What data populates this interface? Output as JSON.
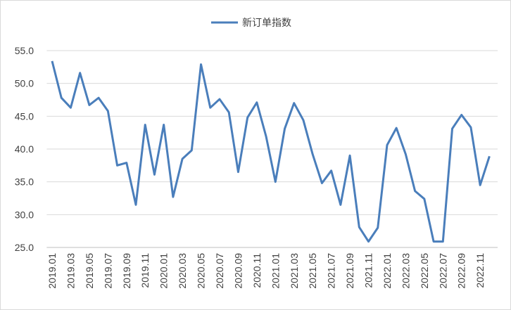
{
  "chart_data": {
    "type": "line",
    "categories": [
      "2019.01",
      null,
      "2019.03",
      null,
      "2019.05",
      null,
      "2019.07",
      null,
      "2019.09",
      null,
      "2019.11",
      null,
      "2020.01",
      null,
      "2020.03",
      null,
      "2020.05",
      null,
      "2020.07",
      null,
      "2020.09",
      null,
      "2020.11",
      null,
      "2021.01",
      null,
      "2021.03",
      null,
      "2021.05",
      null,
      "2021.07",
      null,
      "2021.09",
      null,
      "2021.11",
      null,
      "2022.01",
      null,
      "2022.03",
      null,
      "2022.05",
      null,
      "2022.07",
      null,
      "2022.09",
      null,
      "2022.11",
      null
    ],
    "series": [
      {
        "name": "新订单指数",
        "color": "#4a7ebb",
        "values": [
          53.4,
          47.8,
          46.3,
          51.6,
          46.7,
          47.8,
          45.8,
          37.5,
          37.9,
          31.5,
          43.7,
          36.1,
          43.7,
          32.7,
          38.5,
          39.8,
          52.9,
          46.3,
          47.6,
          45.6,
          36.5,
          44.8,
          47.1,
          41.9,
          35.0,
          43.1,
          47.0,
          44.4,
          39.2,
          34.8,
          36.7,
          31.5,
          39.0,
          28.1,
          25.9,
          28.0,
          40.6,
          43.2,
          39.2,
          33.6,
          32.4,
          25.9,
          25.9,
          43.1,
          45.2,
          43.3,
          34.5,
          38.9
        ]
      }
    ],
    "ylim": [
      25,
      55
    ],
    "yticks": [
      {
        "value": 25,
        "label": "25.0"
      },
      {
        "value": 30,
        "label": "30.0"
      },
      {
        "value": 35,
        "label": "35.0"
      },
      {
        "value": 40,
        "label": "40.0"
      },
      {
        "value": 45,
        "label": "45.0"
      },
      {
        "value": 50,
        "label": "50.0"
      },
      {
        "value": 55,
        "label": "55.0"
      }
    ],
    "grid": true,
    "legend": "top"
  }
}
